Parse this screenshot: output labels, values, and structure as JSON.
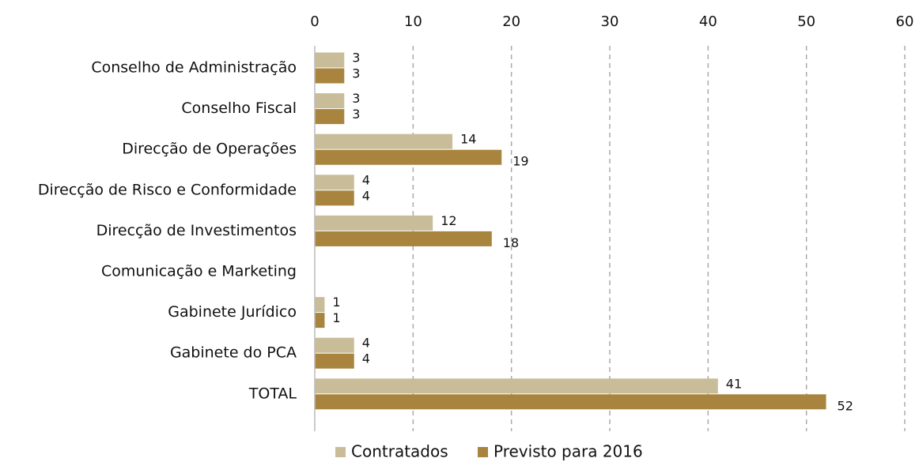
{
  "chart_data": {
    "type": "bar",
    "orientation": "horizontal",
    "categories": [
      "Conselho de Administração",
      "Conselho Fiscal",
      "Direcção de Operações",
      "Direcção de Risco e Conformidade",
      "Direcção de Investimentos",
      "Comunicação e Marketing",
      "Gabinete Jurídico",
      "Gabinete do PCA",
      "TOTAL"
    ],
    "series": [
      {
        "name": "Contratados",
        "color": "#c8bd98",
        "values": [
          3,
          3,
          14,
          4,
          12,
          null,
          1,
          4,
          41
        ]
      },
      {
        "name": "Previsto para 2016",
        "color": "#a8843e",
        "values": [
          3,
          3,
          19,
          4,
          18,
          null,
          1,
          4,
          52
        ]
      }
    ],
    "xlim": [
      0,
      60
    ],
    "xticks": [
      0,
      10,
      20,
      30,
      40,
      50,
      60
    ],
    "grid": true,
    "legend": "bottom"
  }
}
